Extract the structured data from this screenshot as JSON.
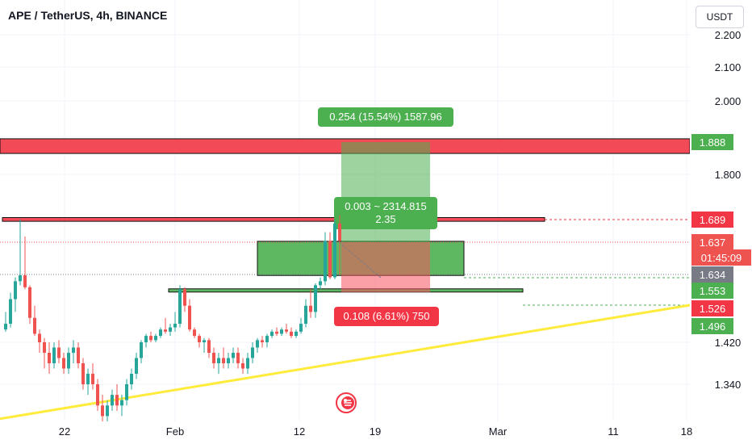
{
  "header": {
    "title": "APE / TetherUS, 4h, BINANCE",
    "currency_button": "USDT"
  },
  "colors": {
    "up": "#26a69a",
    "down": "#ef5350",
    "resistance_zone": "#f23645",
    "support_zone": "#4caf50",
    "trendline": "#ffeb3b",
    "profit_zone": "#4caf50",
    "loss_zone": "#f7525f"
  },
  "chart_data": {
    "type": "candlestick",
    "symbol": "APE / TetherUS",
    "timeframe": "4h",
    "exchange": "BINANCE",
    "x_ticks": [
      "22",
      "Feb",
      "12",
      "19",
      "Mar",
      "11",
      "18"
    ],
    "y_ticks": [
      "2.200",
      "2.100",
      "2.000",
      "1.800",
      "1.420",
      "1.340"
    ],
    "ylim": [
      1.27,
      2.22
    ],
    "grid": true,
    "price_labels": [
      {
        "text": "1.888",
        "price": 1.888,
        "color": "#4caf50"
      },
      {
        "text": "1.689",
        "price": 1.689,
        "color": "#f23645"
      },
      {
        "text": "1.637",
        "price": 1.637,
        "color": "#ef5350"
      },
      {
        "text": "01:45:09",
        "price": 1.611,
        "color": "#ef5350"
      },
      {
        "text": "1.634",
        "price": 1.634,
        "color": "#787b86"
      },
      {
        "text": "1.553",
        "price": 1.553,
        "color": "#4caf50"
      },
      {
        "text": "1.526",
        "price": 1.526,
        "color": "#f23645"
      },
      {
        "text": "1.496",
        "price": 1.496,
        "color": "#4caf50"
      }
    ],
    "position": {
      "type": "long",
      "entry": 1.634,
      "target": 1.888,
      "stop": 1.526,
      "target_label": "0.254 (15.54%) 1587.96",
      "center_label_line1": "0.003 ~ 2314.815",
      "center_label_line2": "2.35",
      "stop_label": "0.108 (6.61%) 750"
    },
    "zones": [
      {
        "name": "resistance-high",
        "low": 1.857,
        "high": 1.897,
        "color": "#f23645"
      },
      {
        "name": "resistance-mid",
        "low": 1.685,
        "high": 1.694,
        "color": "#f23645"
      },
      {
        "name": "support-upper",
        "low": 1.629,
        "high": 1.639,
        "color": "#4caf50"
      },
      {
        "name": "support-lower",
        "low": 1.553,
        "high": 1.562,
        "color": "#4caf50"
      }
    ],
    "trendline": {
      "start_price": 1.281,
      "end_price": 1.496
    },
    "series": [
      {
        "values": [
          [
            1.48,
            1.52,
            1.47,
            1.5
          ],
          [
            1.5,
            1.55,
            1.49,
            1.54
          ],
          [
            1.54,
            1.62,
            1.52,
            1.6
          ],
          [
            1.6,
            1.69,
            1.58,
            1.63
          ],
          [
            1.63,
            1.65,
            1.56,
            1.57
          ],
          [
            1.57,
            1.58,
            1.5,
            1.51
          ],
          [
            1.51,
            1.53,
            1.45,
            1.46
          ],
          [
            1.46,
            1.48,
            1.4,
            1.42
          ],
          [
            1.42,
            1.44,
            1.37,
            1.4
          ],
          [
            1.4,
            1.42,
            1.36,
            1.38
          ],
          [
            1.38,
            1.42,
            1.37,
            1.41
          ],
          [
            1.41,
            1.43,
            1.38,
            1.39
          ],
          [
            1.39,
            1.4,
            1.36,
            1.37
          ],
          [
            1.37,
            1.41,
            1.36,
            1.4
          ],
          [
            1.4,
            1.43,
            1.38,
            1.41
          ],
          [
            1.41,
            1.42,
            1.37,
            1.38
          ],
          [
            1.38,
            1.39,
            1.33,
            1.34
          ],
          [
            1.34,
            1.37,
            1.32,
            1.36
          ],
          [
            1.36,
            1.38,
            1.33,
            1.34
          ],
          [
            1.34,
            1.35,
            1.29,
            1.3
          ],
          [
            1.3,
            1.32,
            1.27,
            1.28
          ],
          [
            1.28,
            1.31,
            1.27,
            1.3
          ],
          [
            1.3,
            1.33,
            1.29,
            1.32
          ],
          [
            1.32,
            1.34,
            1.29,
            1.3
          ],
          [
            1.3,
            1.32,
            1.28,
            1.31
          ],
          [
            1.31,
            1.35,
            1.3,
            1.34
          ],
          [
            1.34,
            1.37,
            1.33,
            1.36
          ],
          [
            1.36,
            1.4,
            1.35,
            1.39
          ],
          [
            1.39,
            1.43,
            1.38,
            1.42
          ],
          [
            1.42,
            1.46,
            1.41,
            1.45
          ],
          [
            1.45,
            1.47,
            1.42,
            1.43
          ],
          [
            1.43,
            1.46,
            1.42,
            1.45
          ],
          [
            1.45,
            1.49,
            1.44,
            1.48
          ],
          [
            1.48,
            1.51,
            1.46,
            1.47
          ],
          [
            1.47,
            1.5,
            1.45,
            1.49
          ],
          [
            1.49,
            1.52,
            1.47,
            1.5
          ],
          [
            1.5,
            1.58,
            1.49,
            1.56
          ],
          [
            1.56,
            1.57,
            1.52,
            1.53
          ],
          [
            1.53,
            1.54,
            1.47,
            1.48
          ],
          [
            1.48,
            1.49,
            1.44,
            1.45
          ],
          [
            1.45,
            1.46,
            1.41,
            1.42
          ],
          [
            1.42,
            1.44,
            1.4,
            1.43
          ],
          [
            1.43,
            1.44,
            1.39,
            1.4
          ],
          [
            1.4,
            1.41,
            1.37,
            1.38
          ],
          [
            1.38,
            1.4,
            1.36,
            1.39
          ],
          [
            1.39,
            1.41,
            1.37,
            1.38
          ],
          [
            1.38,
            1.4,
            1.37,
            1.39
          ],
          [
            1.39,
            1.41,
            1.38,
            1.4
          ],
          [
            1.4,
            1.41,
            1.37,
            1.38
          ],
          [
            1.38,
            1.39,
            1.36,
            1.37
          ],
          [
            1.37,
            1.4,
            1.36,
            1.39
          ],
          [
            1.39,
            1.42,
            1.38,
            1.41
          ],
          [
            1.41,
            1.44,
            1.4,
            1.43
          ],
          [
            1.43,
            1.45,
            1.41,
            1.42
          ],
          [
            1.42,
            1.46,
            1.41,
            1.45
          ],
          [
            1.45,
            1.48,
            1.44,
            1.47
          ],
          [
            1.47,
            1.49,
            1.45,
            1.46
          ],
          [
            1.46,
            1.49,
            1.45,
            1.48
          ],
          [
            1.48,
            1.5,
            1.46,
            1.47
          ],
          [
            1.47,
            1.49,
            1.44,
            1.45
          ],
          [
            1.45,
            1.48,
            1.44,
            1.47
          ],
          [
            1.47,
            1.51,
            1.46,
            1.5
          ],
          [
            1.5,
            1.54,
            1.49,
            1.53
          ],
          [
            1.53,
            1.56,
            1.51,
            1.52
          ],
          [
            1.52,
            1.59,
            1.51,
            1.58
          ],
          [
            1.58,
            1.62,
            1.56,
            1.6
          ],
          [
            1.6,
            1.66,
            1.58,
            1.64
          ],
          [
            1.64,
            1.66,
            1.61,
            1.62
          ],
          [
            1.62,
            1.69,
            1.61,
            1.68
          ],
          [
            1.68,
            1.7,
            1.63,
            1.64
          ]
        ]
      }
    ]
  }
}
